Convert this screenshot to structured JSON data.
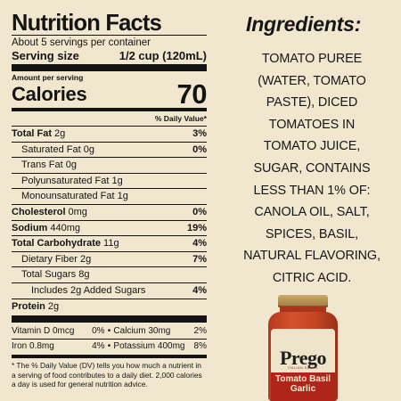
{
  "nutrition": {
    "title": "Nutrition Facts",
    "servings": "About 5 servings per container",
    "serving_size_label": "Serving size",
    "serving_size_value": "1/2 cup (120mL)",
    "amount_per_serving": "Amount per serving",
    "calories_label": "Calories",
    "calories_value": "70",
    "dv_header": "% Daily Value*",
    "rows": [
      {
        "label": "Total Fat",
        "amount": "2g",
        "dv": "3%"
      },
      {
        "label": "Saturated Fat",
        "amount": "0g",
        "dv": "0%"
      },
      {
        "label": "Trans Fat",
        "amount": "0g",
        "dv": ""
      },
      {
        "label": "Polyunsaturated Fat",
        "amount": "1g",
        "dv": ""
      },
      {
        "label": "Monounsaturated Fat",
        "amount": "1g",
        "dv": ""
      },
      {
        "label": "Cholesterol",
        "amount": "0mg",
        "dv": "0%"
      },
      {
        "label": "Sodium",
        "amount": "440mg",
        "dv": "19%"
      },
      {
        "label": "Total Carbohydrate",
        "amount": "11g",
        "dv": "4%"
      },
      {
        "label": "Dietary Fiber",
        "amount": "2g",
        "dv": "7%"
      },
      {
        "label": "Total Sugars",
        "amount": "8g",
        "dv": ""
      },
      {
        "label": "Includes 2g Added Sugars",
        "amount": "",
        "dv": "4%"
      },
      {
        "label": "Protein",
        "amount": "2g",
        "dv": ""
      }
    ],
    "vitamins": [
      {
        "left_label": "Vitamin D 0mcg",
        "left_dv": "0%",
        "right_label": "Calcium 30mg",
        "right_dv": "2%"
      },
      {
        "left_label": "Iron 0.8mg",
        "left_dv": "4%",
        "right_label": "Potassium 400mg",
        "right_dv": "8%"
      }
    ],
    "separator": "•",
    "footnote": "* The % Daily Value (DV) tells you how much a nutrient in a serving of food contributes to a daily diet. 2,000 calories a day is used for general nutrition advice."
  },
  "ingredients": {
    "title": "Ingredients:",
    "lines": [
      "TOMATO PUREE",
      "(WATER, TOMATO",
      "PASTE), DICED",
      "TOMATOES IN",
      "TOMATO JUICE,",
      "SUGAR, CONTAINS",
      "LESS THAN 1% OF:",
      "CANOLA OIL, SALT,",
      "SPICES, BASIL,",
      "NATURAL FLAVORING,",
      "CITRIC ACID."
    ]
  },
  "product": {
    "brand": "Prego",
    "subtitle": "ITALIAN SAUCE",
    "flavor_line1": "Tomato Basil",
    "flavor_line2": "Garlic"
  },
  "colors": {
    "background": "#f1e7cf",
    "text": "#141414",
    "jar_red": "#c24422",
    "jar_band": "#b0251a"
  }
}
